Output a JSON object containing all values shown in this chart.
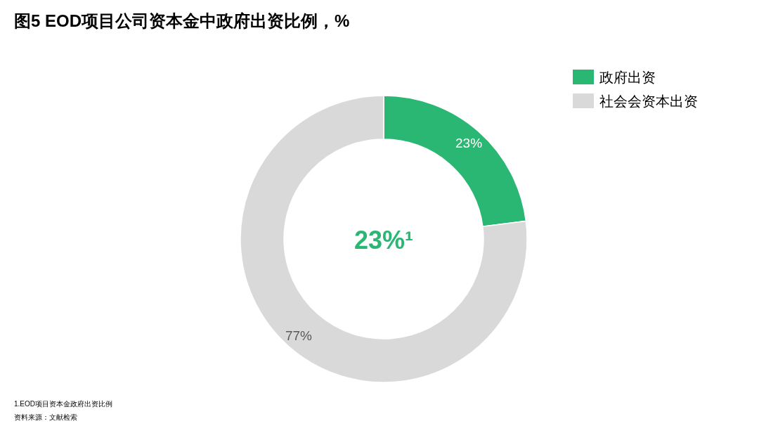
{
  "chart_data": {
    "type": "donut",
    "title": "图5  EOD项目公司资本金中政府出资比例，%",
    "categories": [
      "政府出资",
      "社会会资本出资"
    ],
    "values": [
      23,
      77
    ],
    "colors": [
      "#2ab673",
      "#d9d9d9"
    ],
    "value_labels": [
      "23%",
      "77%"
    ],
    "legend": "top right",
    "annotations": [
      "23%¹",
      "1.EOD项目资本金政府出资比例",
      "资料来源：文献检索"
    ]
  }
}
